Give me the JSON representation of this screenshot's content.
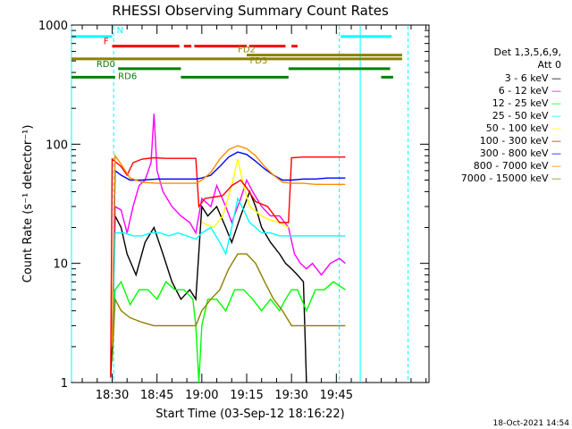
{
  "chart_data": {
    "type": "line",
    "title": "RHESSI Observing Summary Count Rates",
    "xlabel": "Start Time (03-Sep-12 18:16:22)",
    "ylabel": "Count Rate (s⁻¹ detector⁻¹)",
    "yscale": "log",
    "ylim": [
      1,
      1000
    ],
    "xlim_minutes_of_day": [
      1096.4,
      1216.0
    ],
    "x_tick_labels": [
      "18:30",
      "18:45",
      "19:00",
      "19:15",
      "19:30",
      "19:45"
    ],
    "x_tick_minutes": [
      1110,
      1125,
      1140,
      1155,
      1170,
      1185
    ],
    "y_tick_labels": [
      "1",
      "10",
      "100",
      "1000"
    ],
    "y_tick_values": [
      1,
      10,
      100,
      1000
    ],
    "grid": false,
    "legend_position": "right",
    "legend_header": [
      "Det 1,3,5,6,9,",
      "Att 0"
    ],
    "timestamp": "18-Oct-2021 14:54",
    "series": [
      {
        "name": "3 - 6 keV",
        "color": "#000000",
        "points": [
          [
            1109.5,
            1.1
          ],
          [
            1110,
            2
          ],
          [
            1111,
            25
          ],
          [
            1113,
            20
          ],
          [
            1115,
            12
          ],
          [
            1118,
            8
          ],
          [
            1121,
            15
          ],
          [
            1124,
            20
          ],
          [
            1127,
            12
          ],
          [
            1130,
            7
          ],
          [
            1133,
            5
          ],
          [
            1136,
            6
          ],
          [
            1138,
            5
          ],
          [
            1140,
            30
          ],
          [
            1142,
            25
          ],
          [
            1145,
            30
          ],
          [
            1148,
            20
          ],
          [
            1150,
            15
          ],
          [
            1153,
            25
          ],
          [
            1156,
            40
          ],
          [
            1158,
            30
          ],
          [
            1160,
            20
          ],
          [
            1163,
            15
          ],
          [
            1166,
            12
          ],
          [
            1168,
            10
          ],
          [
            1170,
            9
          ],
          [
            1172,
            8
          ],
          [
            1174,
            7
          ],
          [
            1175,
            1
          ]
        ]
      },
      {
        "name": "6 - 12 keV",
        "color": "#ff00ff",
        "points": [
          [
            1110,
            2
          ],
          [
            1111,
            30
          ],
          [
            1113,
            28
          ],
          [
            1115,
            18
          ],
          [
            1117,
            30
          ],
          [
            1119,
            45
          ],
          [
            1121,
            50
          ],
          [
            1123,
            70
          ],
          [
            1124,
            180
          ],
          [
            1125,
            60
          ],
          [
            1127,
            40
          ],
          [
            1130,
            30
          ],
          [
            1133,
            25
          ],
          [
            1136,
            22
          ],
          [
            1138,
            18
          ],
          [
            1140,
            35
          ],
          [
            1143,
            30
          ],
          [
            1145,
            45
          ],
          [
            1148,
            30
          ],
          [
            1150,
            22
          ],
          [
            1153,
            35
          ],
          [
            1155,
            50
          ],
          [
            1157,
            40
          ],
          [
            1160,
            30
          ],
          [
            1163,
            25
          ],
          [
            1166,
            25
          ],
          [
            1169,
            20
          ],
          [
            1171,
            12
          ],
          [
            1173,
            10
          ],
          [
            1175,
            9
          ],
          [
            1177,
            10
          ],
          [
            1180,
            8
          ],
          [
            1183,
            10
          ],
          [
            1186,
            11
          ],
          [
            1188,
            10
          ]
        ]
      },
      {
        "name": "12 - 25 keV",
        "color": "#00ff00",
        "points": [
          [
            1110,
            2
          ],
          [
            1111,
            6
          ],
          [
            1113,
            7
          ],
          [
            1116,
            4.5
          ],
          [
            1119,
            6
          ],
          [
            1122,
            6
          ],
          [
            1125,
            5
          ],
          [
            1128,
            7
          ],
          [
            1131,
            6
          ],
          [
            1134,
            6
          ],
          [
            1137,
            5
          ],
          [
            1138,
            3
          ],
          [
            1139,
            1
          ],
          [
            1140,
            3
          ],
          [
            1142,
            5
          ],
          [
            1145,
            5
          ],
          [
            1148,
            4
          ],
          [
            1151,
            6
          ],
          [
            1154,
            6
          ],
          [
            1157,
            5
          ],
          [
            1160,
            4
          ],
          [
            1163,
            5
          ],
          [
            1166,
            4
          ],
          [
            1168,
            5
          ],
          [
            1170,
            6
          ],
          [
            1172,
            6
          ],
          [
            1175,
            4
          ],
          [
            1178,
            6
          ],
          [
            1181,
            6
          ],
          [
            1184,
            7
          ],
          [
            1188,
            6
          ]
        ]
      },
      {
        "name": "25 - 50 keV",
        "color": "#00ffff",
        "points": [
          [
            1110,
            2
          ],
          [
            1111,
            18
          ],
          [
            1114,
            18
          ],
          [
            1117,
            17
          ],
          [
            1120,
            17
          ],
          [
            1123,
            18
          ],
          [
            1126,
            18
          ],
          [
            1129,
            17
          ],
          [
            1132,
            18
          ],
          [
            1135,
            17
          ],
          [
            1138,
            16
          ],
          [
            1140,
            18
          ],
          [
            1143,
            20
          ],
          [
            1146,
            15
          ],
          [
            1148,
            12
          ],
          [
            1150,
            20
          ],
          [
            1152,
            35
          ],
          [
            1154,
            28
          ],
          [
            1156,
            22
          ],
          [
            1158,
            20
          ],
          [
            1160,
            18
          ],
          [
            1163,
            18
          ],
          [
            1166,
            17
          ],
          [
            1170,
            17
          ],
          [
            1174,
            17
          ],
          [
            1178,
            17
          ],
          [
            1182,
            17
          ],
          [
            1188,
            17
          ]
        ]
      },
      {
        "name": "50 - 100 keV",
        "color": "#ffff00",
        "points": [
          [
            1140,
            22
          ],
          [
            1144,
            20
          ],
          [
            1147,
            25
          ],
          [
            1150,
            45
          ],
          [
            1152,
            75
          ],
          [
            1154,
            45
          ],
          [
            1156,
            30
          ],
          [
            1160,
            25
          ],
          [
            1163,
            23
          ],
          [
            1166,
            22
          ],
          [
            1169,
            20
          ]
        ]
      },
      {
        "name": "100 - 300 keV",
        "color": "#ff0000",
        "points": [
          [
            1109.5,
            1.1
          ],
          [
            1110,
            75
          ],
          [
            1113,
            65
          ],
          [
            1115,
            55
          ],
          [
            1117,
            70
          ],
          [
            1120,
            75
          ],
          [
            1124,
            77
          ],
          [
            1128,
            76
          ],
          [
            1132,
            76
          ],
          [
            1136,
            76
          ],
          [
            1138,
            76
          ],
          [
            1139,
            30
          ],
          [
            1141,
            35
          ],
          [
            1144,
            36
          ],
          [
            1147,
            37
          ],
          [
            1150,
            45
          ],
          [
            1153,
            50
          ],
          [
            1155,
            43
          ],
          [
            1158,
            33
          ],
          [
            1162,
            30
          ],
          [
            1166,
            22
          ],
          [
            1169,
            22
          ],
          [
            1170,
            77
          ],
          [
            1174,
            78
          ],
          [
            1178,
            78
          ],
          [
            1182,
            78
          ],
          [
            1188,
            78
          ]
        ]
      },
      {
        "name": "300 - 800 keV",
        "color": "#0000ff",
        "points": [
          [
            1110,
            2
          ],
          [
            1111,
            60
          ],
          [
            1113,
            55
          ],
          [
            1116,
            50
          ],
          [
            1120,
            50
          ],
          [
            1125,
            51
          ],
          [
            1130,
            51
          ],
          [
            1135,
            51
          ],
          [
            1138,
            51
          ],
          [
            1140,
            52
          ],
          [
            1143,
            55
          ],
          [
            1146,
            65
          ],
          [
            1149,
            78
          ],
          [
            1152,
            86
          ],
          [
            1155,
            82
          ],
          [
            1158,
            72
          ],
          [
            1161,
            62
          ],
          [
            1164,
            55
          ],
          [
            1167,
            50
          ],
          [
            1170,
            50
          ],
          [
            1174,
            51
          ],
          [
            1178,
            51
          ],
          [
            1182,
            52
          ],
          [
            1188,
            52
          ]
        ]
      },
      {
        "name": "800 - 7000 keV",
        "color": "#ff8c00",
        "points": [
          [
            1110,
            2
          ],
          [
            1111,
            80
          ],
          [
            1113,
            68
          ],
          [
            1116,
            52
          ],
          [
            1120,
            48
          ],
          [
            1125,
            47
          ],
          [
            1130,
            47
          ],
          [
            1135,
            47
          ],
          [
            1138,
            47
          ],
          [
            1140,
            50
          ],
          [
            1143,
            58
          ],
          [
            1146,
            75
          ],
          [
            1149,
            90
          ],
          [
            1152,
            97
          ],
          [
            1155,
            92
          ],
          [
            1158,
            80
          ],
          [
            1161,
            65
          ],
          [
            1164,
            55
          ],
          [
            1167,
            48
          ],
          [
            1170,
            47
          ],
          [
            1174,
            47
          ],
          [
            1178,
            46
          ],
          [
            1182,
            46
          ],
          [
            1188,
            46
          ]
        ]
      },
      {
        "name": "7000 - 15000 keV",
        "color": "#8b8000",
        "points": [
          [
            1110,
            1.5
          ],
          [
            1111,
            5
          ],
          [
            1113,
            4
          ],
          [
            1116,
            3.5
          ],
          [
            1120,
            3.2
          ],
          [
            1124,
            3
          ],
          [
            1128,
            3
          ],
          [
            1132,
            3
          ],
          [
            1136,
            3
          ],
          [
            1138,
            3
          ],
          [
            1140,
            4
          ],
          [
            1143,
            5
          ],
          [
            1146,
            6
          ],
          [
            1149,
            9
          ],
          [
            1152,
            12
          ],
          [
            1155,
            12
          ],
          [
            1158,
            10
          ],
          [
            1161,
            7
          ],
          [
            1164,
            5
          ],
          [
            1167,
            4
          ],
          [
            1170,
            3
          ],
          [
            1175,
            3
          ],
          [
            1180,
            3
          ],
          [
            1184,
            3
          ],
          [
            1188,
            3
          ]
        ]
      }
    ],
    "annotations": [
      {
        "label": "N",
        "color": "#00ffff",
        "y": 800,
        "intervals": [
          [
            1096.4,
            1110.0
          ],
          [
            1186.5,
            1203.5
          ]
        ]
      },
      {
        "label": "F",
        "color": "#ff0000",
        "y": 665,
        "intervals": [
          [
            1110.0,
            1132.5
          ],
          [
            1134.0,
            1136.5
          ],
          [
            1137.5,
            1155.0
          ],
          [
            1155.8,
            1168.0
          ],
          [
            1170.0,
            1172.0
          ]
        ]
      },
      {
        "label": "FD2",
        "color": "#8b8000",
        "y": 560,
        "intervals": [
          [
            1155.0,
            1207.0
          ]
        ]
      },
      {
        "label": "FD3",
        "color": "#8b8000",
        "y": 520,
        "intervals": [
          [
            1096.4,
            1207.0
          ]
        ]
      },
      {
        "label": "RD0",
        "color": "#008000",
        "y": 430,
        "intervals": [
          [
            1112.0,
            1133.0
          ],
          [
            1169.0,
            1203.0
          ]
        ]
      },
      {
        "label": "RD6",
        "color": "#008000",
        "y": 365,
        "intervals": [
          [
            1096.4,
            1111.0
          ],
          [
            1133.0,
            1169.0
          ],
          [
            1200.0,
            1204.0
          ]
        ]
      }
    ],
    "vertical_markers": [
      {
        "kind": "solid",
        "color": "#00ffff",
        "x": 1096.4
      },
      {
        "kind": "dashed",
        "color": "#00ffff",
        "x": 1110.5
      },
      {
        "kind": "dashed",
        "color": "#00ffff",
        "x": 1186.0
      },
      {
        "kind": "solid",
        "color": "#00ffff",
        "x": 1193.0
      },
      {
        "kind": "dashed",
        "color": "#00ffff",
        "x": 1209.0
      }
    ]
  }
}
